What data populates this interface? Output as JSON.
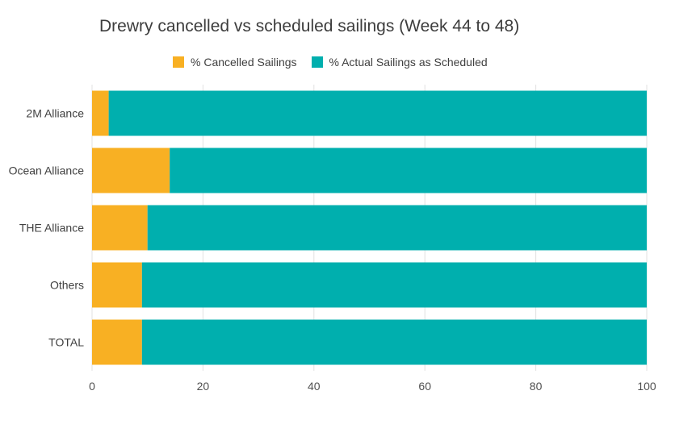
{
  "chart_data": {
    "type": "bar",
    "orientation": "horizontal",
    "stacked": true,
    "title": "Drewry cancelled vs scheduled sailings (Week 44 to 48)",
    "xlabel": "",
    "ylabel": "",
    "categories": [
      "2M Alliance",
      "Ocean Alliance",
      "THE Alliance",
      "Others",
      "TOTAL"
    ],
    "series": [
      {
        "name": "% Cancelled Sailings",
        "values": [
          3,
          14,
          10,
          9,
          9
        ],
        "color": "#f8b023"
      },
      {
        "name": "% Actual Sailings as Scheduled",
        "values": [
          97,
          86,
          90,
          91,
          91
        ],
        "color": "#00afae"
      }
    ],
    "xlim": [
      0,
      100
    ],
    "xticks": [
      0,
      20,
      40,
      60,
      80,
      100
    ],
    "grid": "vertical",
    "legend_position": "top"
  }
}
